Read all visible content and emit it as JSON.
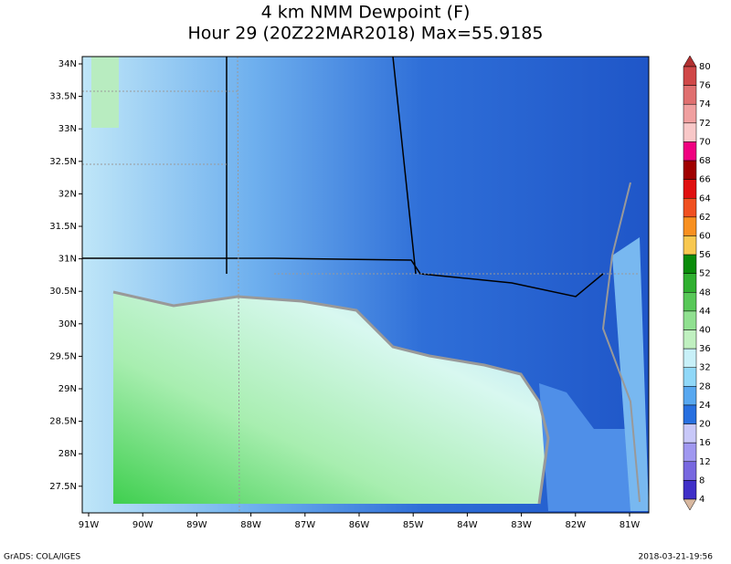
{
  "title": [
    "4 km NMM Dewpoint (F)",
    "Hour 29 (20Z22MAR2018) Max=55.9185"
  ],
  "lat_labels": [
    "34N",
    "33.5N",
    "33N",
    "32.5N",
    "32N",
    "31.5N",
    "31N",
    "30.5N",
    "30N",
    "29.5N",
    "29N",
    "28.5N",
    "28N",
    "27.5N"
  ],
  "lon_labels": [
    "91W",
    "90W",
    "89W",
    "88W",
    "87W",
    "86W",
    "85W",
    "84W",
    "83W",
    "82W",
    "81W"
  ],
  "colorbar": {
    "labels": [
      "80",
      "76",
      "74",
      "72",
      "70",
      "68",
      "66",
      "64",
      "62",
      "60",
      "56",
      "52",
      "48",
      "44",
      "40",
      "36",
      "32",
      "28",
      "24",
      "20",
      "16",
      "12",
      "8",
      "4"
    ],
    "colors": [
      "#b03030",
      "#d04848",
      "#e07070",
      "#f0a0a0",
      "#f8c8c8",
      "#f00080",
      "#a00000",
      "#e01010",
      "#f05020",
      "#f89020",
      "#f8c850",
      "#0a8c0a",
      "#30b030",
      "#58c858",
      "#90e090",
      "#c0f0c0",
      "#c8f0f8",
      "#90d8f8",
      "#58a8f0",
      "#2870e0",
      "#c8c8f8",
      "#a098f0",
      "#7868e0",
      "#4030c8",
      "#2010a0",
      "#d8b8a0"
    ]
  },
  "footer": {
    "left": "GrADS: COLA/IGES",
    "right": "2018-03-21-19:56"
  }
}
